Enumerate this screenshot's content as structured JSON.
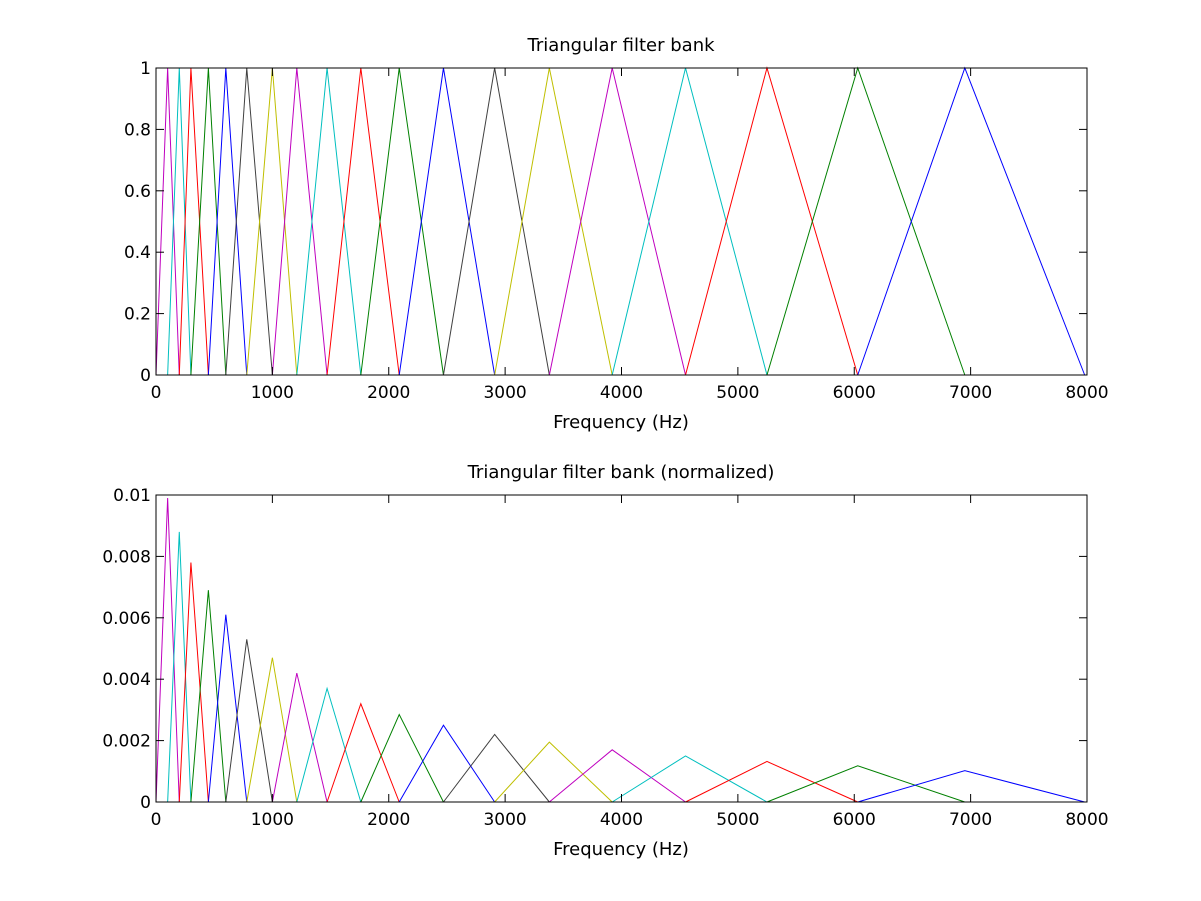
{
  "colors": [
    "#0000ff",
    "#008000",
    "#ff0000",
    "#00bfbf",
    "#bf00bf",
    "#bfbf00",
    "#404040"
  ],
  "chart_data": [
    {
      "type": "line",
      "title": "Triangular filter bank",
      "xlabel": "Frequency (Hz)",
      "ylabel": "",
      "xlim": [
        0,
        8000
      ],
      "ylim": [
        0,
        1
      ],
      "xticks": [
        0,
        1000,
        2000,
        3000,
        4000,
        5000,
        6000,
        7000,
        8000
      ],
      "xtick_labels": [
        "0",
        "1000",
        "2000",
        "3000",
        "4000",
        "5000",
        "6000",
        "7000",
        "8000"
      ],
      "yticks": [
        0,
        0.2,
        0.4,
        0.6,
        0.8,
        1
      ],
      "ytick_labels": [
        "0",
        "0.2",
        "0.4",
        "0.6",
        "0.8",
        "1"
      ],
      "grid": false,
      "legend": false,
      "edges_hz": [
        0,
        100,
        200,
        300,
        450,
        600,
        780,
        1000,
        1210,
        1470,
        1760,
        2090,
        2470,
        2910,
        3380,
        3920,
        4550,
        5250,
        6030,
        6950,
        7980
      ],
      "series": [
        {
          "color": "#bf00bf",
          "x": [
            0,
            100,
            200
          ],
          "y": [
            0,
            1,
            0
          ]
        },
        {
          "color": "#00bfbf",
          "x": [
            100,
            200,
            300
          ],
          "y": [
            0,
            1,
            0
          ]
        },
        {
          "color": "#ff0000",
          "x": [
            200,
            300,
            450
          ],
          "y": [
            0,
            1,
            0
          ]
        },
        {
          "color": "#008000",
          "x": [
            300,
            450,
            600
          ],
          "y": [
            0,
            1,
            0
          ]
        },
        {
          "color": "#0000ff",
          "x": [
            450,
            600,
            780
          ],
          "y": [
            0,
            1,
            0
          ]
        },
        {
          "color": "#404040",
          "x": [
            600,
            780,
            1000
          ],
          "y": [
            0,
            1,
            0
          ]
        },
        {
          "color": "#bfbf00",
          "x": [
            780,
            1000,
            1210
          ],
          "y": [
            0,
            1,
            0
          ]
        },
        {
          "color": "#bf00bf",
          "x": [
            1000,
            1210,
            1470
          ],
          "y": [
            0,
            1,
            0
          ]
        },
        {
          "color": "#00bfbf",
          "x": [
            1210,
            1470,
            1760
          ],
          "y": [
            0,
            1,
            0
          ]
        },
        {
          "color": "#ff0000",
          "x": [
            1470,
            1760,
            2090
          ],
          "y": [
            0,
            1,
            0
          ]
        },
        {
          "color": "#008000",
          "x": [
            1760,
            2090,
            2470
          ],
          "y": [
            0,
            1,
            0
          ]
        },
        {
          "color": "#0000ff",
          "x": [
            2090,
            2470,
            2910
          ],
          "y": [
            0,
            1,
            0
          ]
        },
        {
          "color": "#404040",
          "x": [
            2470,
            2910,
            3380
          ],
          "y": [
            0,
            1,
            0
          ]
        },
        {
          "color": "#bfbf00",
          "x": [
            2910,
            3380,
            3920
          ],
          "y": [
            0,
            1,
            0
          ]
        },
        {
          "color": "#bf00bf",
          "x": [
            3380,
            3920,
            4550
          ],
          "y": [
            0,
            1,
            0
          ]
        },
        {
          "color": "#00bfbf",
          "x": [
            3920,
            4550,
            5250
          ],
          "y": [
            0,
            1,
            0
          ]
        },
        {
          "color": "#ff0000",
          "x": [
            4550,
            5250,
            6030
          ],
          "y": [
            0,
            1,
            0
          ]
        },
        {
          "color": "#008000",
          "x": [
            5250,
            6030,
            6950
          ],
          "y": [
            0,
            1,
            0
          ]
        },
        {
          "color": "#0000ff",
          "x": [
            6030,
            6950,
            7980
          ],
          "y": [
            0,
            1,
            0
          ]
        }
      ]
    },
    {
      "type": "line",
      "title": "Triangular filter bank (normalized)",
      "xlabel": "Frequency (Hz)",
      "ylabel": "",
      "xlim": [
        0,
        8000
      ],
      "ylim": [
        0,
        0.01
      ],
      "xticks": [
        0,
        1000,
        2000,
        3000,
        4000,
        5000,
        6000,
        7000,
        8000
      ],
      "xtick_labels": [
        "0",
        "1000",
        "2000",
        "3000",
        "4000",
        "5000",
        "6000",
        "7000",
        "8000"
      ],
      "yticks": [
        0,
        0.002,
        0.004,
        0.006,
        0.008,
        0.01
      ],
      "ytick_labels": [
        "0",
        "0.002",
        "0.004",
        "0.006",
        "0.008",
        "0.01"
      ],
      "grid": false,
      "legend": false,
      "series": [
        {
          "color": "#bf00bf",
          "x": [
            0,
            100,
            200
          ],
          "y": [
            0,
            0.0099,
            0
          ]
        },
        {
          "color": "#00bfbf",
          "x": [
            100,
            200,
            300
          ],
          "y": [
            0,
            0.0088,
            0
          ]
        },
        {
          "color": "#ff0000",
          "x": [
            200,
            300,
            450
          ],
          "y": [
            0,
            0.0078,
            0
          ]
        },
        {
          "color": "#008000",
          "x": [
            300,
            450,
            600
          ],
          "y": [
            0,
            0.0069,
            0
          ]
        },
        {
          "color": "#0000ff",
          "x": [
            450,
            600,
            780
          ],
          "y": [
            0,
            0.0061,
            0
          ]
        },
        {
          "color": "#404040",
          "x": [
            600,
            780,
            1000
          ],
          "y": [
            0,
            0.0053,
            0
          ]
        },
        {
          "color": "#bfbf00",
          "x": [
            780,
            1000,
            1210
          ],
          "y": [
            0,
            0.0047,
            0
          ]
        },
        {
          "color": "#bf00bf",
          "x": [
            1000,
            1210,
            1470
          ],
          "y": [
            0,
            0.0042,
            0
          ]
        },
        {
          "color": "#00bfbf",
          "x": [
            1210,
            1470,
            1760
          ],
          "y": [
            0,
            0.0037,
            0
          ]
        },
        {
          "color": "#ff0000",
          "x": [
            1470,
            1760,
            2090
          ],
          "y": [
            0,
            0.0032,
            0
          ]
        },
        {
          "color": "#008000",
          "x": [
            1760,
            2090,
            2470
          ],
          "y": [
            0,
            0.00285,
            0
          ]
        },
        {
          "color": "#0000ff",
          "x": [
            2090,
            2470,
            2910
          ],
          "y": [
            0,
            0.0025,
            0
          ]
        },
        {
          "color": "#404040",
          "x": [
            2470,
            2910,
            3380
          ],
          "y": [
            0,
            0.0022,
            0
          ]
        },
        {
          "color": "#bfbf00",
          "x": [
            2910,
            3380,
            3920
          ],
          "y": [
            0,
            0.00195,
            0
          ]
        },
        {
          "color": "#bf00bf",
          "x": [
            3380,
            3920,
            4550
          ],
          "y": [
            0,
            0.0017,
            0
          ]
        },
        {
          "color": "#00bfbf",
          "x": [
            3920,
            4550,
            5250
          ],
          "y": [
            0,
            0.0015,
            0
          ]
        },
        {
          "color": "#ff0000",
          "x": [
            4550,
            5250,
            6030
          ],
          "y": [
            0,
            0.00132,
            0
          ]
        },
        {
          "color": "#008000",
          "x": [
            5250,
            6030,
            6950
          ],
          "y": [
            0,
            0.00118,
            0
          ]
        },
        {
          "color": "#0000ff",
          "x": [
            6030,
            6950,
            7980
          ],
          "y": [
            0,
            0.00102,
            0
          ]
        }
      ]
    }
  ]
}
